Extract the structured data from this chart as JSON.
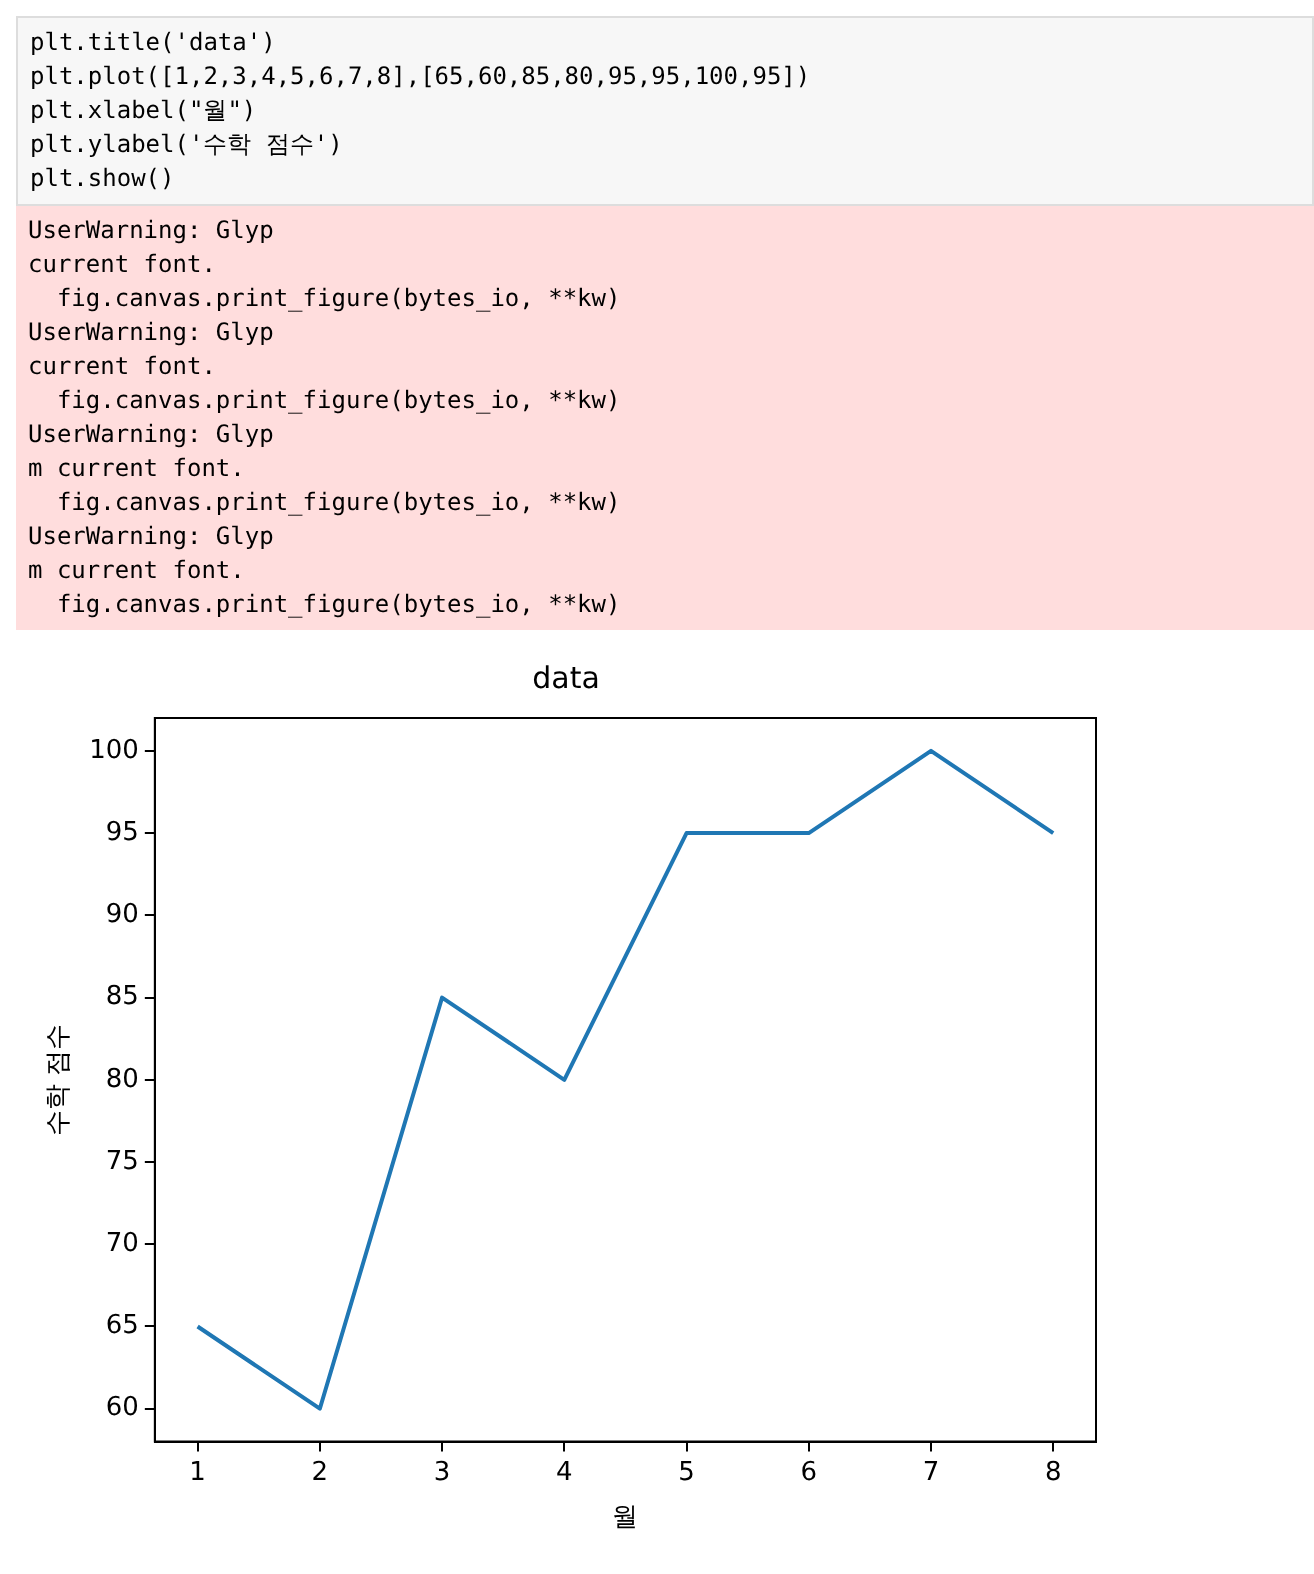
{
  "chart_data": {
    "type": "line",
    "title": "data",
    "xlabel": "월",
    "ylabel": "수학 점수",
    "x": [
      1,
      2,
      3,
      4,
      5,
      6,
      7,
      8
    ],
    "series": [
      {
        "color": "#1f77b4",
        "values": [
          65,
          60,
          85,
          80,
          95,
          95,
          100,
          95
        ]
      }
    ],
    "xlim": [
      0.65,
      8.35
    ],
    "xticks": [
      1,
      2,
      3,
      4,
      5,
      6,
      7,
      8
    ],
    "ylim": [
      58,
      102
    ],
    "yticks": [
      60,
      65,
      70,
      75,
      80,
      85,
      90,
      95,
      100
    ],
    "grid": false,
    "legend": false,
    "marker": "none",
    "line_style": "solid",
    "annotations": [
      "plt.title('data')\nplt.plot([1,2,3,4,5,6,7,8],[65,60,85,80,95,95,100,95])\nplt.xlabel(\"월\")\nplt.ylabel('수학 점수')\nplt.show()",
      "UserWarning: Glyp\ncurrent font.\n  fig.canvas.print_figure(bytes_io, **kw)\nUserWarning: Glyp\ncurrent font.\n  fig.canvas.print_figure(bytes_io, **kw)\nUserWarning: Glyp\nm current font.\n  fig.canvas.print_figure(bytes_io, **kw)\nUserWarning: Glyp\nm current font.\n  fig.canvas.print_figure(bytes_io, **kw)"
    ]
  }
}
